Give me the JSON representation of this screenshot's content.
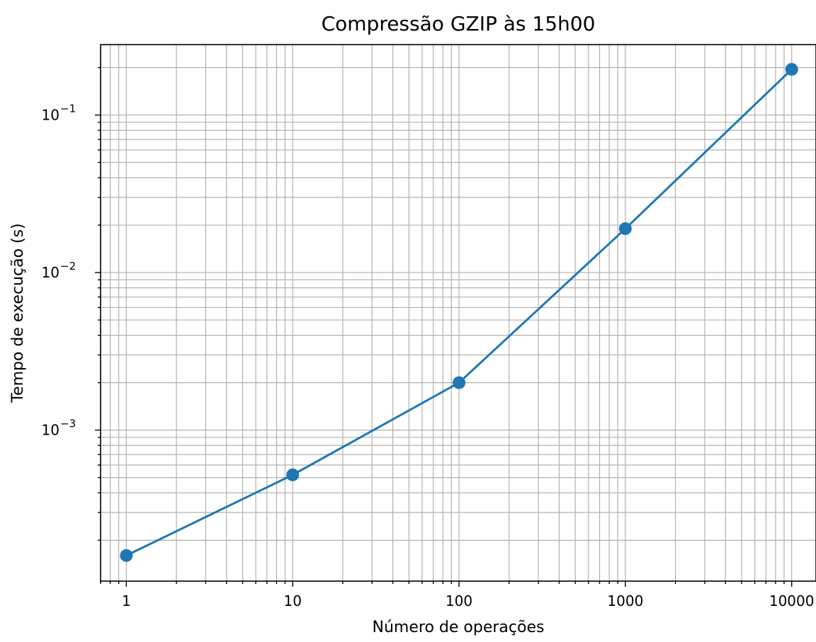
{
  "chart_data": {
    "type": "line",
    "title": "Compressão GZIP às 15h00",
    "xlabel": "Número de operações",
    "ylabel": "Tempo de execução (s)",
    "x_scale": "log",
    "y_scale": "log",
    "xlim": [
      0.7,
      14000
    ],
    "ylim": [
      0.00011,
      0.28
    ],
    "grid": "major and minor",
    "x_ticks": [
      {
        "value": 1,
        "label": "1"
      },
      {
        "value": 10,
        "label": "10"
      },
      {
        "value": 100,
        "label": "100"
      },
      {
        "value": 1000,
        "label": "1000"
      },
      {
        "value": 10000,
        "label": "10000"
      }
    ],
    "y_ticks": [
      {
        "value": 0.001,
        "base": "10",
        "exp": "−3"
      },
      {
        "value": 0.01,
        "base": "10",
        "exp": "−2"
      },
      {
        "value": 0.1,
        "base": "10",
        "exp": "−1"
      }
    ],
    "series": [
      {
        "color": "#1f77b4",
        "marker": "circle",
        "x": [
          1,
          10,
          100,
          1000,
          10000
        ],
        "y": [
          0.00016,
          0.00052,
          0.002,
          0.019,
          0.195
        ]
      }
    ]
  }
}
